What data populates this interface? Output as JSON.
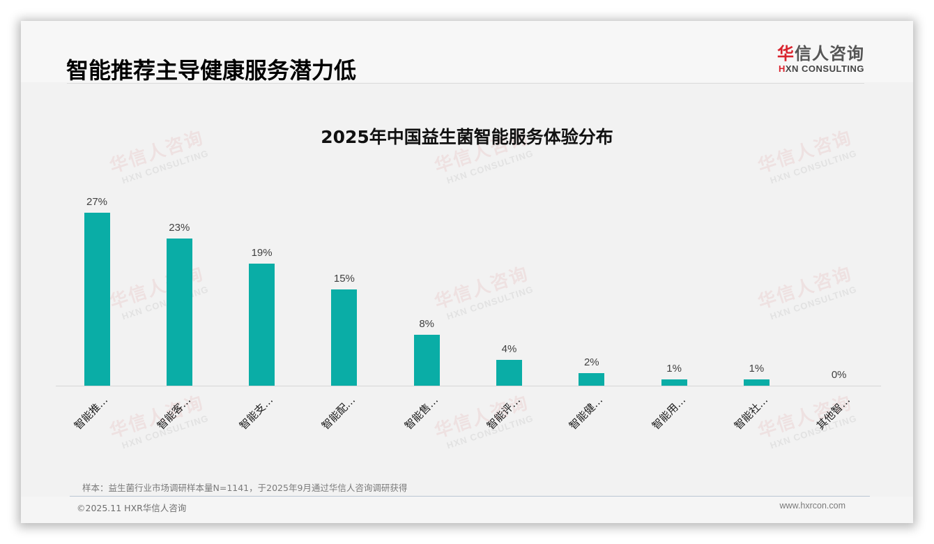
{
  "header": {
    "title": "智能推荐主导健康服务潜力低",
    "logo": {
      "cn_first": "华",
      "cn_rest": "信人咨询",
      "en_first": "H",
      "en_rest": "XN CONSULTING"
    }
  },
  "watermark": {
    "cn": "华信人咨询",
    "en": "HXN CONSULTING"
  },
  "chart_data": {
    "type": "bar",
    "title": "2025年中国益生菌智能服务体验分布",
    "categories": [
      "智能推…",
      "智能客…",
      "智能支…",
      "智能配…",
      "智能售…",
      "智能评…",
      "智能健…",
      "智能用…",
      "智能社…",
      "其他智…"
    ],
    "values": [
      27,
      23,
      19,
      15,
      8,
      4,
      2,
      1,
      1,
      0
    ],
    "value_labels": [
      "27%",
      "23%",
      "19%",
      "15%",
      "8%",
      "4%",
      "2%",
      "1%",
      "1%",
      "0%"
    ],
    "unit": "%",
    "xlabel": "",
    "ylabel": "",
    "ylim": [
      0,
      30
    ],
    "grid": false,
    "legend": "none",
    "bar_color": "#0aada6",
    "label_rotation": -45
  },
  "footer": {
    "note": "样本：益生菌行业市场调研样本量N=1141，于2025年9月通过华信人咨询调研获得",
    "copyright": "©2025.11 HXR华信人咨询",
    "website": "www.hxrcon.com"
  }
}
